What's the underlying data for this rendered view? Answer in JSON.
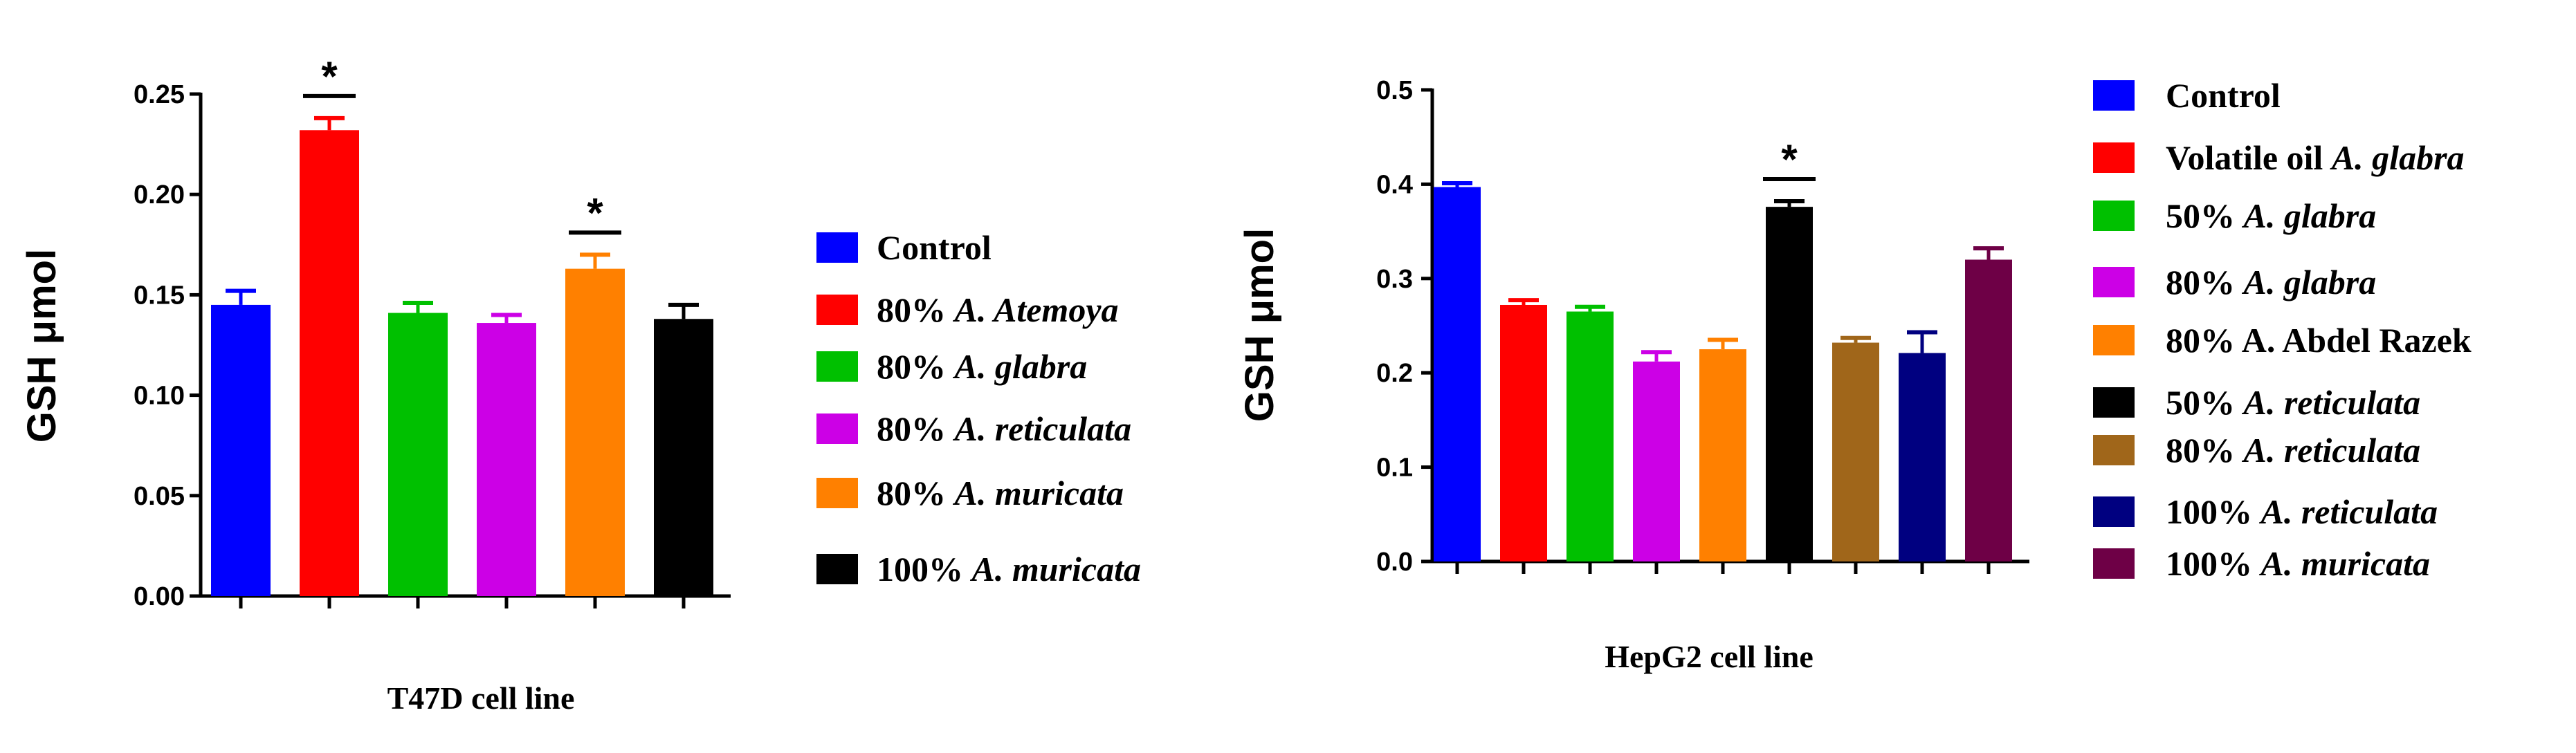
{
  "chart_data": [
    {
      "type": "bar",
      "xlabel": "T47D cell line",
      "ylabel": "GSH  μmol",
      "ylim": [
        0,
        0.25
      ],
      "ticks": [
        "0.00",
        "0.05",
        "0.10",
        "0.15",
        "0.20",
        "0.25"
      ],
      "categories": [
        "Control",
        "80% A. Atemoya",
        "80% A. glabra",
        "80% A. reticulata",
        "80% A. muricata",
        "100% A. muricata"
      ],
      "legend": [
        {
          "plain": "Control",
          "italic": ""
        },
        {
          "plain": "80%  ",
          "italic": "A. Atemoya"
        },
        {
          "plain": "80% ",
          "italic": "A. glabra"
        },
        {
          "plain": "80% ",
          "italic": "A. reticulata"
        },
        {
          "plain": "80% ",
          "italic": "A. muricata"
        },
        {
          "plain": "100% ",
          "italic": "A. muricata"
        }
      ],
      "values": [
        0.145,
        0.232,
        0.141,
        0.136,
        0.163,
        0.138
      ],
      "errors": [
        0.007,
        0.006,
        0.005,
        0.004,
        0.007,
        0.007
      ],
      "colors": [
        "#0000ff",
        "#ff0000",
        "#00c000",
        "#cc00e6",
        "#ff8000",
        "#000000"
      ],
      "significant": [
        false,
        true,
        false,
        false,
        true,
        false
      ],
      "significance_marker": "*"
    },
    {
      "type": "bar",
      "xlabel": "HepG2 cell line",
      "ylabel": "GSH  μmol",
      "ylim": [
        0,
        0.5
      ],
      "ticks": [
        "0.0",
        "0.1",
        "0.2",
        "0.3",
        "0.4",
        "0.5"
      ],
      "categories": [
        "Control",
        "Volatile oil A. glabra",
        "50% A. glabra",
        "80% A. glabra",
        "80% A. Abdel Razek",
        "50% A. reticulata",
        "80% A. reticulata",
        "100% A. reticulata",
        "100% A. muricata"
      ],
      "legend": [
        {
          "plain": "Control",
          "italic": ""
        },
        {
          "plain": "Volatile oil ",
          "italic": "A. glabra"
        },
        {
          "plain": "50% ",
          "italic": "A. glabra"
        },
        {
          "plain": "80% ",
          "italic": "A. glabra"
        },
        {
          "plain": "80% A. Abdel Razek",
          "italic": ""
        },
        {
          "plain": "50% ",
          "italic": "A. reticulata"
        },
        {
          "plain": "80% ",
          "italic": "A. reticulata"
        },
        {
          "plain": "100% ",
          "italic": "A. reticulata"
        },
        {
          "plain": "100% ",
          "italic": "A. muricata"
        }
      ],
      "values": [
        0.397,
        0.272,
        0.265,
        0.212,
        0.225,
        0.376,
        0.232,
        0.221,
        0.32
      ],
      "errors": [
        0.004,
        0.005,
        0.005,
        0.01,
        0.01,
        0.006,
        0.005,
        0.022,
        0.012
      ],
      "colors": [
        "#0000ff",
        "#ff0000",
        "#00c000",
        "#cc00e6",
        "#ff8000",
        "#000000",
        "#a0661a",
        "#000080",
        "#6e0046"
      ],
      "significant": [
        false,
        false,
        false,
        false,
        false,
        true,
        false,
        false,
        false
      ],
      "significance_marker": "*"
    }
  ]
}
